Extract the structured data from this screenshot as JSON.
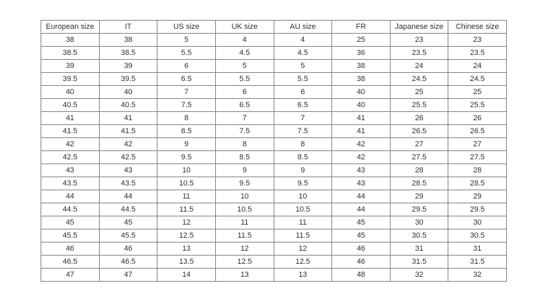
{
  "table": {
    "name": "shoe-size-conversion-table",
    "headers": [
      "European size",
      "IT",
      "US size",
      "UK size",
      "AU size",
      "FR",
      "Japanese size",
      "Chinese size"
    ],
    "rows": [
      [
        "38",
        "38",
        "5",
        "4",
        "4",
        "25",
        "23",
        "23"
      ],
      [
        "38.5",
        "38.5",
        "5.5",
        "4.5",
        "4.5",
        "36",
        "23.5",
        "23.5"
      ],
      [
        "39",
        "39",
        "6",
        "5",
        "5",
        "38",
        "24",
        "24"
      ],
      [
        "39.5",
        "39.5",
        "6.5",
        "5.5",
        "5.5",
        "38",
        "24.5",
        "24.5"
      ],
      [
        "40",
        "40",
        "7",
        "6",
        "6",
        "40",
        "25",
        "25"
      ],
      [
        "40.5",
        "40.5",
        "7.5",
        "6.5",
        "6.5",
        "40",
        "25.5",
        "25.5"
      ],
      [
        "41",
        "41",
        "8",
        "7",
        "7",
        "41",
        "26",
        "26"
      ],
      [
        "41.5",
        "41.5",
        "8.5",
        "7.5",
        "7.5",
        "41",
        "26.5",
        "26.5"
      ],
      [
        "42",
        "42",
        "9",
        "8",
        "8",
        "42",
        "27",
        "27"
      ],
      [
        "42.5",
        "42.5",
        "9.5",
        "8.5",
        "8.5",
        "42",
        "27.5",
        "27.5"
      ],
      [
        "43",
        "43",
        "10",
        "9",
        "9",
        "43",
        "28",
        "28"
      ],
      [
        "43.5",
        "43.5",
        "10.5",
        "9.5",
        "9.5",
        "43",
        "28.5",
        "28.5"
      ],
      [
        "44",
        "44",
        "11",
        "10",
        "10",
        "44",
        "29",
        "29"
      ],
      [
        "44.5",
        "44.5",
        "11.5",
        "10.5",
        "10.5",
        "44",
        "29.5",
        "29.5"
      ],
      [
        "45",
        "45",
        "12",
        "11",
        "11",
        "45",
        "30",
        "30"
      ],
      [
        "45.5",
        "45.5",
        "12.5",
        "11.5",
        "11.5",
        "45",
        "30.5",
        "30.5"
      ],
      [
        "46",
        "46",
        "13",
        "12",
        "12",
        "46",
        "31",
        "31"
      ],
      [
        "46.5",
        "46.5",
        "13.5",
        "12.5",
        "12.5",
        "46",
        "31.5",
        "31.5"
      ],
      [
        "47",
        "47",
        "14",
        "13",
        "13",
        "48",
        "32",
        "32"
      ]
    ],
    "colors": {
      "border": "#7f7f7f",
      "text": "#2e2e2e",
      "background": "#ffffff"
    }
  }
}
